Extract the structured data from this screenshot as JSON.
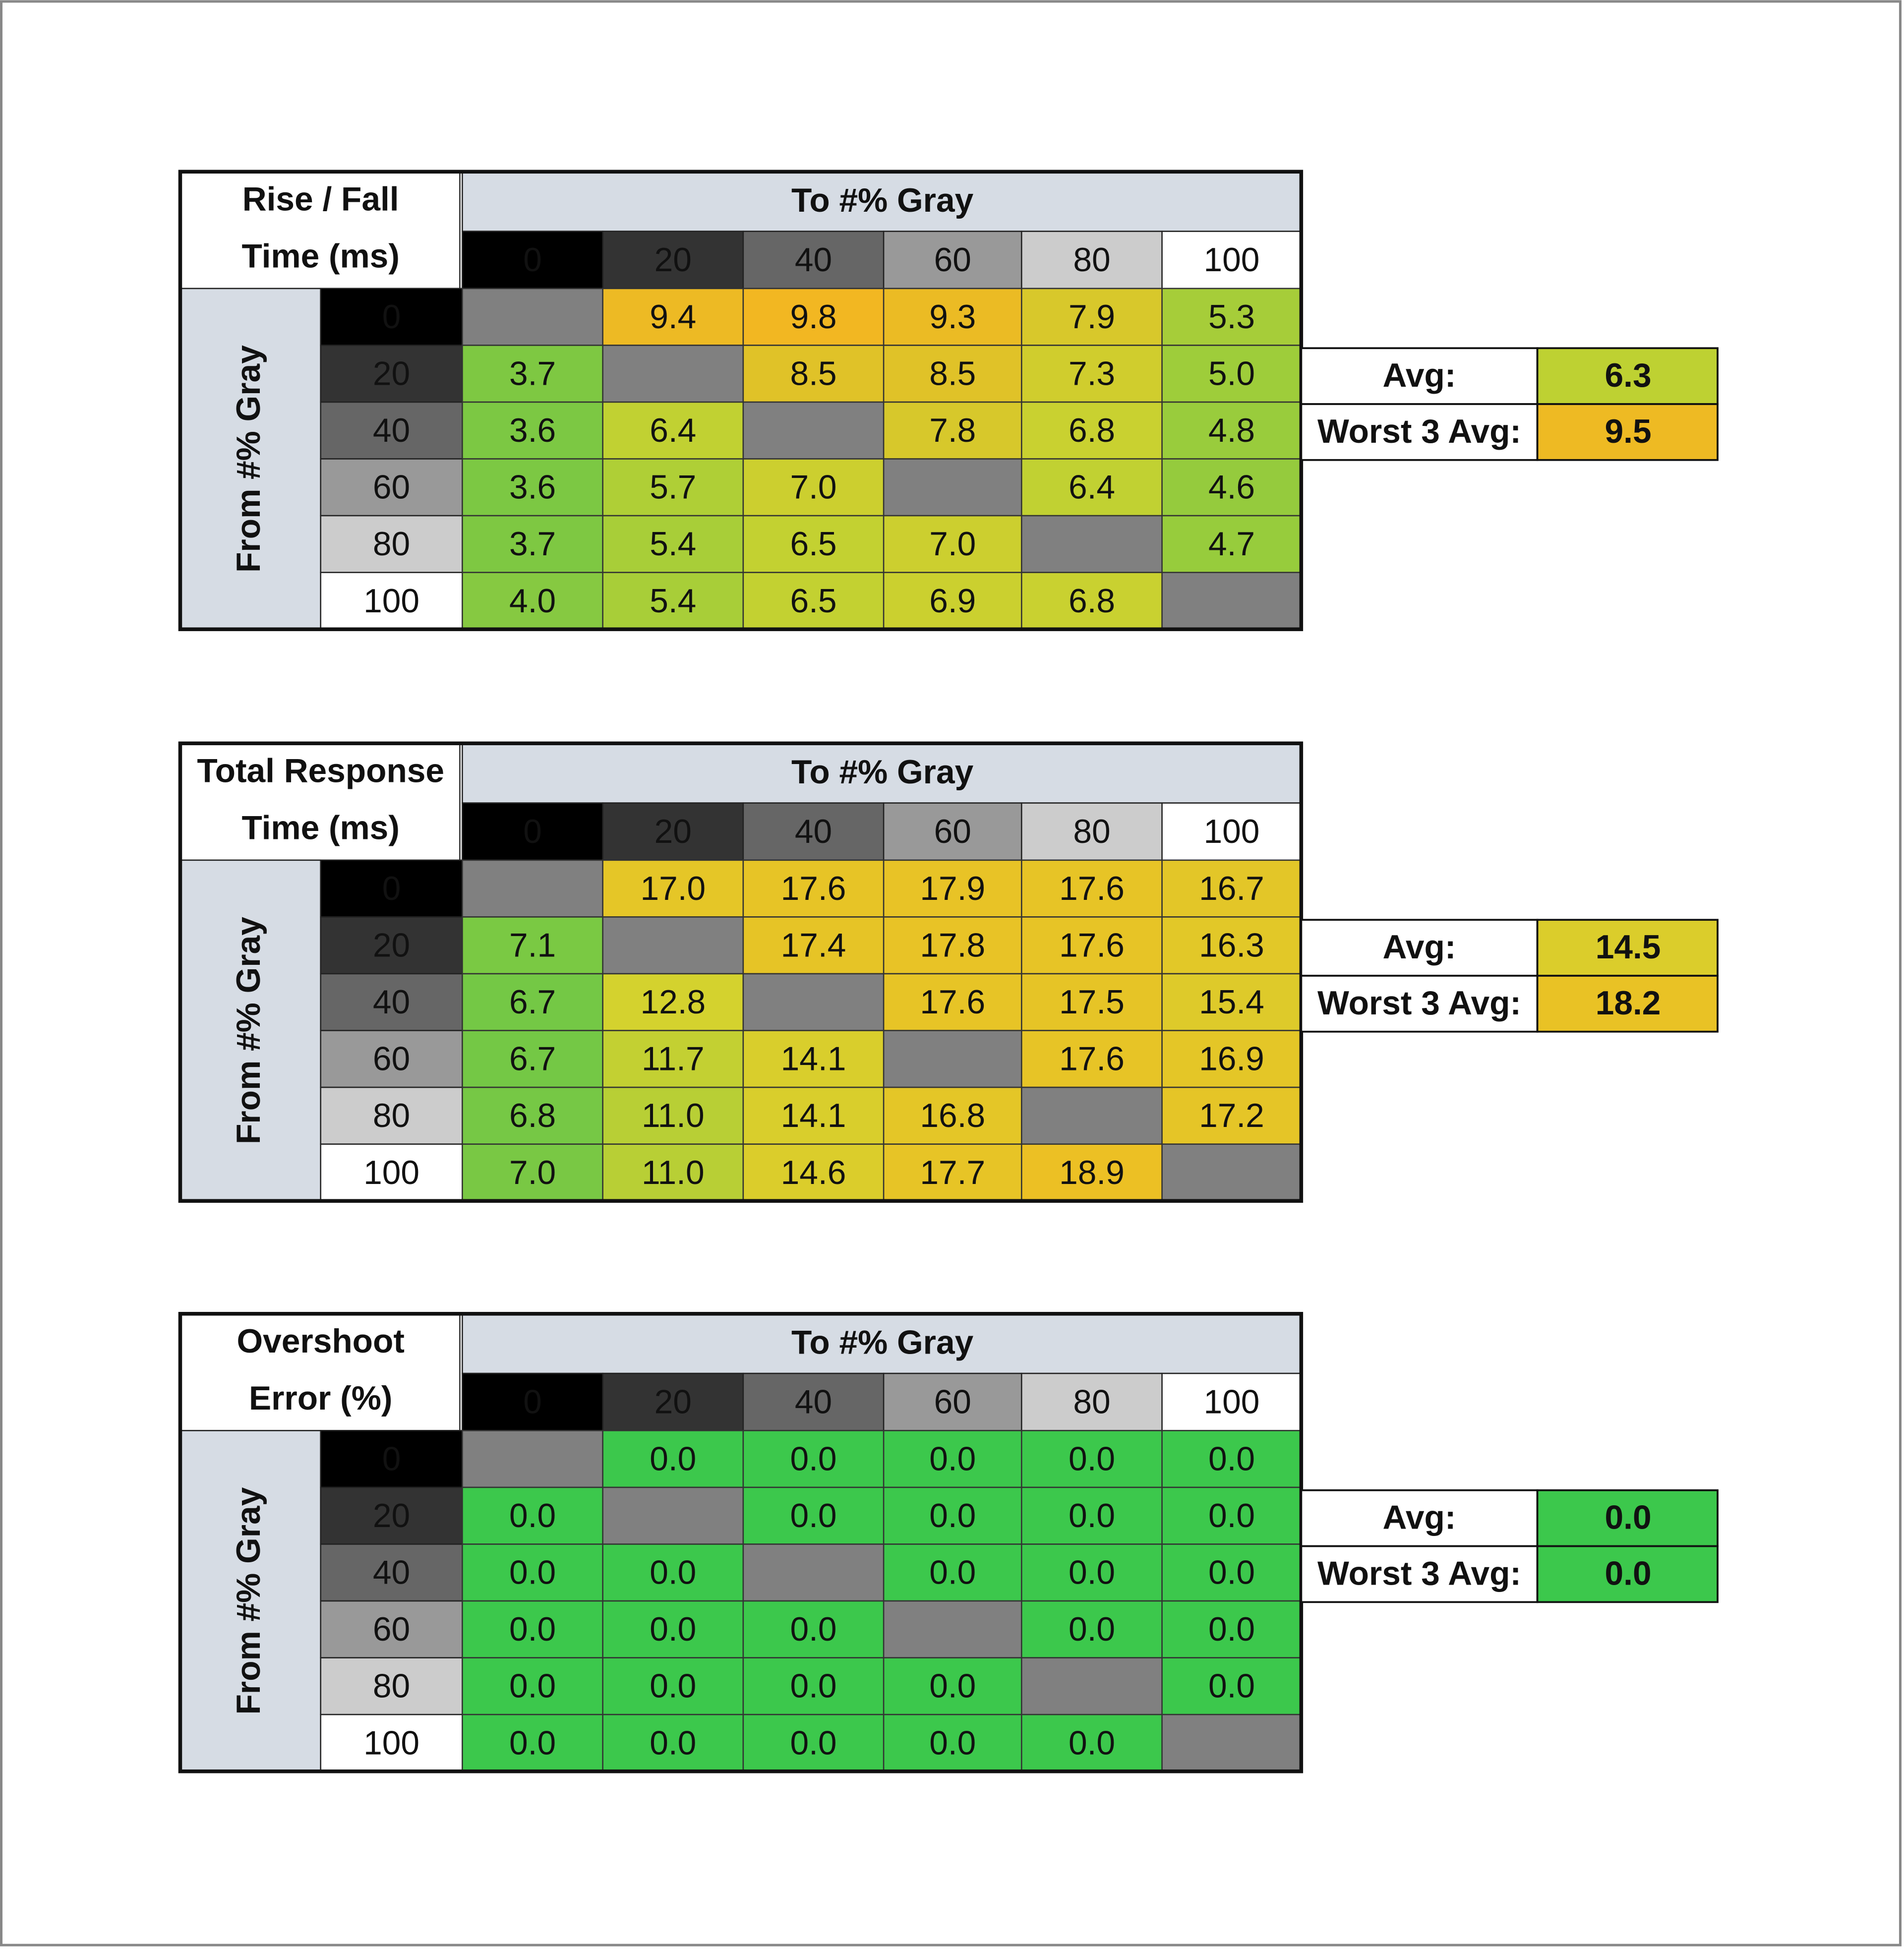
{
  "tables": [
    {
      "title": [
        "Rise / Fall",
        "Time (ms)"
      ],
      "to_label": "To #% Gray",
      "from_label": "From #% Gray",
      "columns": [
        "0",
        "20",
        "40",
        "60",
        "80",
        "100"
      ],
      "rows": [
        "0",
        "20",
        "40",
        "60",
        "80",
        "100"
      ],
      "cells": [
        [
          null,
          "9.4",
          "9.8",
          "9.3",
          "7.9",
          "5.3"
        ],
        [
          "3.7",
          null,
          "8.5",
          "8.5",
          "7.3",
          "5.0"
        ],
        [
          "3.6",
          "6.4",
          null,
          "7.8",
          "6.8",
          "4.8"
        ],
        [
          "3.6",
          "5.7",
          "7.0",
          null,
          "6.4",
          "4.6"
        ],
        [
          "3.7",
          "5.4",
          "6.5",
          "7.0",
          null,
          "4.7"
        ],
        [
          "4.0",
          "5.4",
          "6.5",
          "6.9",
          "6.8",
          null
        ]
      ],
      "avg_label": "Avg:",
      "avg": "6.3",
      "worst_label": "Worst 3 Avg:",
      "worst": "9.5",
      "colors": [
        "#7cc843",
        "#c8d230",
        "#f2b722"
      ]
    },
    {
      "title": [
        "Total Response",
        "Time (ms)"
      ],
      "to_label": "To #% Gray",
      "from_label": "From #% Gray",
      "columns": [
        "0",
        "20",
        "40",
        "60",
        "80",
        "100"
      ],
      "rows": [
        "0",
        "20",
        "40",
        "60",
        "80",
        "100"
      ],
      "cells": [
        [
          null,
          "17.0",
          "17.6",
          "17.9",
          "17.6",
          "16.7"
        ],
        [
          "7.1",
          null,
          "17.4",
          "17.8",
          "17.6",
          "16.3"
        ],
        [
          "6.7",
          "12.8",
          null,
          "17.6",
          "17.5",
          "15.4"
        ],
        [
          "6.7",
          "11.7",
          "14.1",
          null,
          "17.6",
          "16.9"
        ],
        [
          "6.8",
          "11.0",
          "14.1",
          "16.8",
          null,
          "17.2"
        ],
        [
          "7.0",
          "11.0",
          "14.6",
          "17.7",
          "18.9",
          null
        ]
      ],
      "avg_label": "Avg:",
      "avg": "14.5",
      "worst_label": "Worst 3 Avg:",
      "worst": "18.2",
      "colors": [
        "#74c845",
        "#d4d22e",
        "#ecc024"
      ]
    },
    {
      "title": [
        "Overshoot",
        "Error (%)"
      ],
      "to_label": "To #% Gray",
      "from_label": "From #% Gray",
      "columns": [
        "0",
        "20",
        "40",
        "60",
        "80",
        "100"
      ],
      "rows": [
        "0",
        "20",
        "40",
        "60",
        "80",
        "100"
      ],
      "cells": [
        [
          null,
          "0.0",
          "0.0",
          "0.0",
          "0.0",
          "0.0"
        ],
        [
          "0.0",
          null,
          "0.0",
          "0.0",
          "0.0",
          "0.0"
        ],
        [
          "0.0",
          "0.0",
          null,
          "0.0",
          "0.0",
          "0.0"
        ],
        [
          "0.0",
          "0.0",
          "0.0",
          null,
          "0.0",
          "0.0"
        ],
        [
          "0.0",
          "0.0",
          "0.0",
          "0.0",
          null,
          "0.0"
        ],
        [
          "0.0",
          "0.0",
          "0.0",
          "0.0",
          "0.0",
          null
        ]
      ],
      "avg_label": "Avg:",
      "avg": "0.0",
      "worst_label": "Worst 3 Avg:",
      "worst": "0.0",
      "colors": [
        "#3cc84c",
        "#3cc84c",
        "#3cc84c"
      ]
    }
  ]
}
